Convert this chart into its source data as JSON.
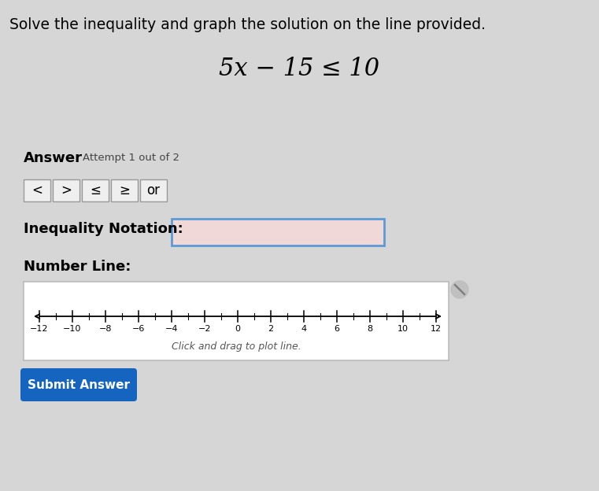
{
  "title": "Solve the inequality and graph the solution on the line provided.",
  "equation": "$5x - 15 \\leq 10$",
  "equation_plain": "5x − 15 ≤ 10",
  "answer_label": "Answer",
  "attempt_label": "Attempt 1 out of 2",
  "buttons": [
    "<",
    ">",
    "≤",
    "≥",
    "or"
  ],
  "inequality_label": "Inequality Notation:",
  "number_line_label": "Number Line:",
  "number_line_min": -12,
  "number_line_max": 12,
  "number_line_ticks": [
    -12,
    -10,
    -8,
    -6,
    -4,
    -2,
    0,
    2,
    4,
    6,
    8,
    10,
    12
  ],
  "drag_label": "Click and drag to plot line.",
  "submit_btn_text": "Submit Answer",
  "submit_btn_color": "#1565c0",
  "page_bg": "#d6d6d6",
  "box_bg": "#ffffff",
  "input_box_border": "#5b9bd5",
  "input_box_bg": "#f0d8d8"
}
